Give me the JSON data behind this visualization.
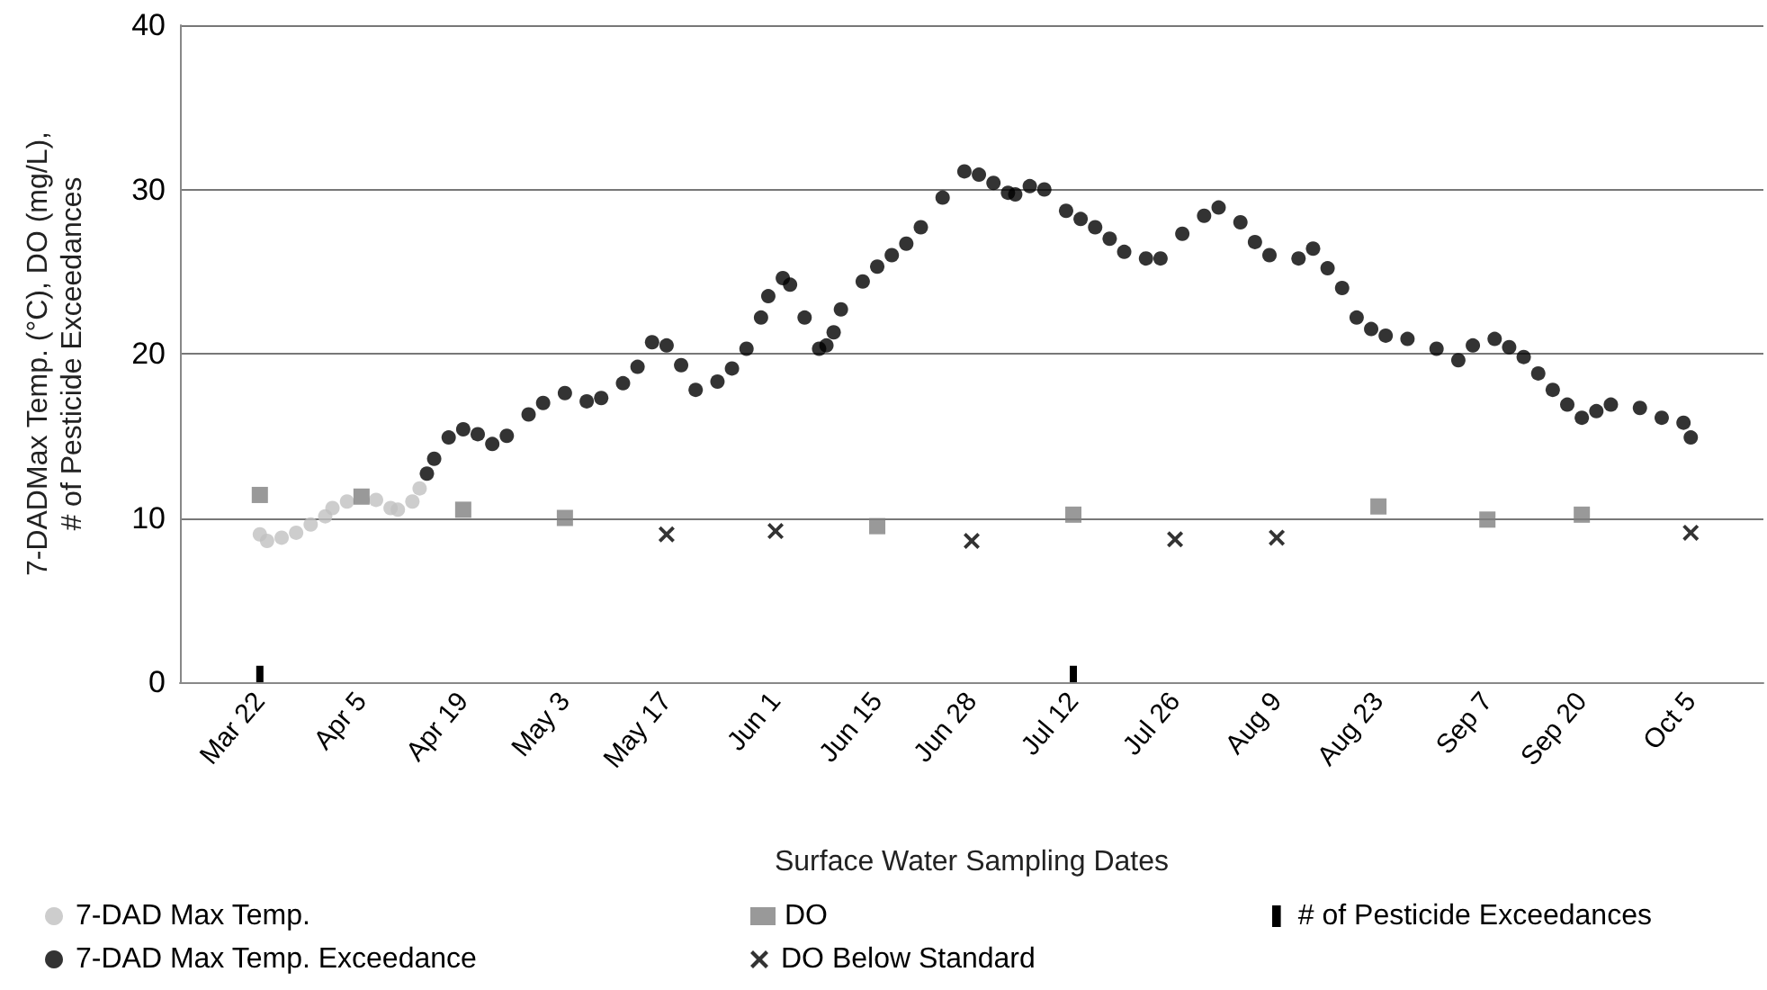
{
  "chart_data": {
    "type": "scatter",
    "xlabel": "Surface Water Sampling Dates",
    "ylabel": "7-DADMax Temp. (°C), DO (mg/L), # of Pesticide Exceedances",
    "xlim": [
      "--03-11",
      "--10-15"
    ],
    "xticks": [
      {
        "value": "--03-22",
        "label": "Mar 22"
      },
      {
        "value": "--04-05",
        "label": "Apr 5"
      },
      {
        "value": "--04-19",
        "label": "Apr 19"
      },
      {
        "value": "--05-03",
        "label": "May 3"
      },
      {
        "value": "--05-17",
        "label": "May 17"
      },
      {
        "value": "--06-01",
        "label": "Jun 1"
      },
      {
        "value": "--06-15",
        "label": "Jun 15"
      },
      {
        "value": "--06-28",
        "label": "Jun 28"
      },
      {
        "value": "--07-12",
        "label": "Jul 12"
      },
      {
        "value": "--07-26",
        "label": "Jul 26"
      },
      {
        "value": "--08-09",
        "label": "Aug 9"
      },
      {
        "value": "--08-23",
        "label": "Aug 23"
      },
      {
        "value": "--09-07",
        "label": "Sep 7"
      },
      {
        "value": "--09-20",
        "label": "Sep 20"
      },
      {
        "value": "--10-05",
        "label": "Oct 5"
      }
    ],
    "ylim": [
      0,
      40
    ],
    "yticks": [
      0,
      10,
      20,
      30,
      40
    ],
    "grid": "y",
    "legend": "bottom",
    "series": [
      {
        "name": "7-DAD Max Temp.",
        "marker": "circle",
        "color": "#c0c0c0",
        "x": [
          "--03-22",
          "--03-23",
          "--03-25",
          "--03-27",
          "--03-29",
          "--03-31",
          "--04-01",
          "--04-03",
          "--04-07",
          "--04-09",
          "--04-10",
          "--04-12",
          "--04-13"
        ],
        "values": [
          9.0,
          8.6,
          8.8,
          9.1,
          9.6,
          10.1,
          10.6,
          11.0,
          11.1,
          10.6,
          10.5,
          11.0,
          11.8
        ]
      },
      {
        "name": "DO",
        "marker": "square",
        "color": "#808080",
        "x": [
          "--03-22",
          "--04-05",
          "--04-19",
          "--05-03",
          "--06-15",
          "--07-12",
          "--08-23",
          "--09-07",
          "--09-20"
        ],
        "values": [
          11.4,
          11.3,
          10.5,
          10.0,
          9.5,
          10.2,
          10.7,
          9.9,
          10.2
        ]
      },
      {
        "name": "# of Pesticide Exceedances",
        "type": "bar",
        "color": "#000000",
        "x": [
          "--03-22",
          "--07-12"
        ],
        "values": [
          1,
          1
        ]
      },
      {
        "name": "7-DAD Max Temp. Exceedance",
        "marker": "circle",
        "color": "#000000",
        "x": [
          "--04-14",
          "--04-15",
          "--04-17",
          "--04-19",
          "--04-21",
          "--04-23",
          "--04-25",
          "--04-28",
          "--04-30",
          "--05-03",
          "--05-06",
          "--05-08",
          "--05-11",
          "--05-13",
          "--05-15",
          "--05-17",
          "--05-19",
          "--05-21",
          "--05-24",
          "--05-26",
          "--05-28",
          "--05-30",
          "--05-31",
          "--06-02",
          "--06-03",
          "--06-05",
          "--06-07",
          "--06-08",
          "--06-09",
          "--06-10",
          "--06-13",
          "--06-15",
          "--06-17",
          "--06-19",
          "--06-21",
          "--06-24",
          "--06-27",
          "--06-29",
          "--07-01",
          "--07-03",
          "--07-04",
          "--07-06",
          "--07-08",
          "--07-11",
          "--07-13",
          "--07-15",
          "--07-17",
          "--07-19",
          "--07-22",
          "--07-24",
          "--07-27",
          "--07-30",
          "--08-01",
          "--08-04",
          "--08-06",
          "--08-08",
          "--08-12",
          "--08-14",
          "--08-16",
          "--08-18",
          "--08-20",
          "--08-22",
          "--08-24",
          "--08-27",
          "--08-31",
          "--09-03",
          "--09-05",
          "--09-08",
          "--09-10",
          "--09-12",
          "--09-14",
          "--09-16",
          "--09-18",
          "--09-20",
          "--09-22",
          "--09-24",
          "--09-28",
          "--10-01",
          "--10-04",
          "--10-05"
        ],
        "values": [
          12.7,
          13.6,
          14.9,
          15.4,
          15.1,
          14.5,
          15.0,
          16.3,
          17.0,
          17.6,
          17.1,
          17.3,
          18.2,
          19.2,
          20.7,
          20.5,
          19.3,
          17.8,
          18.3,
          19.1,
          20.3,
          22.2,
          23.5,
          24.6,
          24.2,
          22.2,
          20.3,
          20.5,
          21.3,
          22.7,
          24.4,
          25.3,
          26.0,
          26.7,
          27.7,
          29.5,
          31.1,
          30.9,
          30.4,
          29.8,
          29.7,
          30.2,
          30.0,
          28.7,
          28.2,
          27.7,
          27.0,
          26.2,
          25.8,
          25.8,
          27.3,
          28.4,
          28.9,
          28.0,
          26.8,
          26.0,
          25.8,
          26.4,
          25.2,
          24.0,
          22.2,
          21.5,
          21.1,
          20.9,
          20.3,
          19.6,
          20.5,
          20.9,
          20.4,
          19.8,
          18.8,
          17.8,
          16.9,
          16.1,
          16.5,
          16.9,
          16.7,
          16.1,
          15.8,
          14.9
        ]
      },
      {
        "name": "DO Below Standard",
        "marker": "cross",
        "color": "#000000",
        "x": [
          "--05-17",
          "--06-01",
          "--06-28",
          "--07-26",
          "--08-09",
          "--10-05"
        ],
        "values": [
          9.0,
          9.2,
          8.6,
          8.7,
          8.8,
          9.1
        ]
      }
    ]
  }
}
